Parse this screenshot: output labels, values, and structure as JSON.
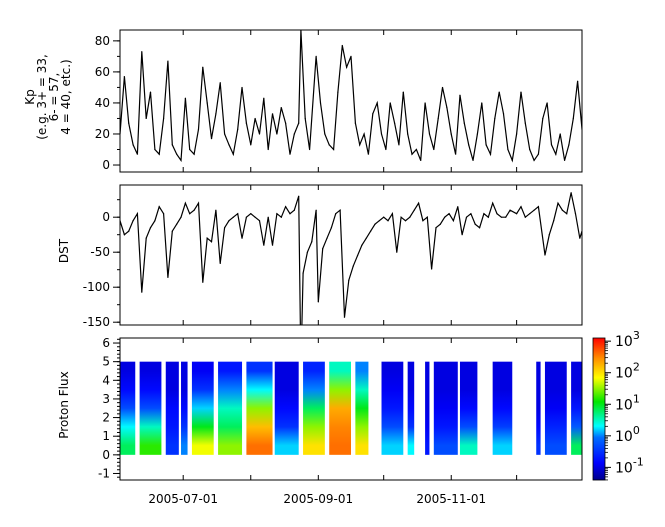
{
  "chart_data": [
    {
      "type": "line",
      "ylabel_lines": [
        "Kp",
        "(e.g. 3+ = 33,",
        "6- = 57,",
        "4 = 40, etc.)"
      ],
      "xlim": [
        "2005-06-02",
        "2005-12-31"
      ],
      "ylim": [
        -4.5,
        87
      ],
      "yticks": [
        0,
        20,
        40,
        60,
        80
      ],
      "color": "#000000",
      "points": [
        [
          "2005-06-02",
          20
        ],
        [
          "2005-06-04",
          57
        ],
        [
          "2005-06-06",
          27
        ],
        [
          "2005-06-08",
          13
        ],
        [
          "2005-06-10",
          7
        ],
        [
          "2005-06-12",
          73
        ],
        [
          "2005-06-14",
          30
        ],
        [
          "2005-06-16",
          47
        ],
        [
          "2005-06-18",
          10
        ],
        [
          "2005-06-20",
          7
        ],
        [
          "2005-06-22",
          30
        ],
        [
          "2005-06-24",
          67
        ],
        [
          "2005-06-26",
          13
        ],
        [
          "2005-06-28",
          7
        ],
        [
          "2005-06-30",
          3
        ],
        [
          "2005-07-02",
          43
        ],
        [
          "2005-07-04",
          10
        ],
        [
          "2005-07-06",
          7
        ],
        [
          "2005-07-08",
          23
        ],
        [
          "2005-07-10",
          63
        ],
        [
          "2005-07-12",
          40
        ],
        [
          "2005-07-14",
          17
        ],
        [
          "2005-07-16",
          33
        ],
        [
          "2005-07-18",
          53
        ],
        [
          "2005-07-20",
          20
        ],
        [
          "2005-07-22",
          13
        ],
        [
          "2005-07-24",
          7
        ],
        [
          "2005-07-26",
          23
        ],
        [
          "2005-07-28",
          50
        ],
        [
          "2005-07-30",
          27
        ],
        [
          "2005-08-01",
          13
        ],
        [
          "2005-08-03",
          30
        ],
        [
          "2005-08-05",
          20
        ],
        [
          "2005-08-07",
          43
        ],
        [
          "2005-08-09",
          10
        ],
        [
          "2005-08-11",
          33
        ],
        [
          "2005-08-13",
          20
        ],
        [
          "2005-08-15",
          37
        ],
        [
          "2005-08-17",
          27
        ],
        [
          "2005-08-19",
          7
        ],
        [
          "2005-08-21",
          20
        ],
        [
          "2005-08-23",
          27
        ],
        [
          "2005-08-24",
          87
        ],
        [
          "2005-08-26",
          30
        ],
        [
          "2005-08-28",
          10
        ],
        [
          "2005-08-31",
          70
        ],
        [
          "2005-09-02",
          40
        ],
        [
          "2005-09-04",
          20
        ],
        [
          "2005-09-06",
          13
        ],
        [
          "2005-09-08",
          10
        ],
        [
          "2005-09-10",
          47
        ],
        [
          "2005-09-12",
          77
        ],
        [
          "2005-09-14",
          63
        ],
        [
          "2005-09-16",
          70
        ],
        [
          "2005-09-18",
          27
        ],
        [
          "2005-09-20",
          13
        ],
        [
          "2005-09-22",
          20
        ],
        [
          "2005-09-24",
          7
        ],
        [
          "2005-09-26",
          33
        ],
        [
          "2005-09-28",
          40
        ],
        [
          "2005-09-30",
          20
        ],
        [
          "2005-10-02",
          10
        ],
        [
          "2005-10-04",
          40
        ],
        [
          "2005-10-06",
          27
        ],
        [
          "2005-10-08",
          13
        ],
        [
          "2005-10-10",
          47
        ],
        [
          "2005-10-12",
          20
        ],
        [
          "2005-10-14",
          7
        ],
        [
          "2005-10-16",
          10
        ],
        [
          "2005-10-18",
          3
        ],
        [
          "2005-10-20",
          40
        ],
        [
          "2005-10-22",
          20
        ],
        [
          "2005-10-24",
          10
        ],
        [
          "2005-10-26",
          30
        ],
        [
          "2005-10-28",
          50
        ],
        [
          "2005-10-30",
          37
        ],
        [
          "2005-11-01",
          20
        ],
        [
          "2005-11-03",
          7
        ],
        [
          "2005-11-05",
          45
        ],
        [
          "2005-11-07",
          27
        ],
        [
          "2005-11-09",
          13
        ],
        [
          "2005-11-11",
          3
        ],
        [
          "2005-11-13",
          20
        ],
        [
          "2005-11-15",
          40
        ],
        [
          "2005-11-17",
          13
        ],
        [
          "2005-11-19",
          7
        ],
        [
          "2005-11-21",
          30
        ],
        [
          "2005-11-23",
          47
        ],
        [
          "2005-11-25",
          33
        ],
        [
          "2005-11-27",
          10
        ],
        [
          "2005-11-29",
          3
        ],
        [
          "2005-12-01",
          20
        ],
        [
          "2005-12-03",
          47
        ],
        [
          "2005-12-05",
          27
        ],
        [
          "2005-12-07",
          10
        ],
        [
          "2005-12-09",
          3
        ],
        [
          "2005-12-11",
          7
        ],
        [
          "2005-12-13",
          30
        ],
        [
          "2005-12-15",
          40
        ],
        [
          "2005-12-17",
          13
        ],
        [
          "2005-12-19",
          7
        ],
        [
          "2005-12-21",
          20
        ],
        [
          "2005-12-23",
          3
        ],
        [
          "2005-12-25",
          13
        ],
        [
          "2005-12-27",
          30
        ],
        [
          "2005-12-29",
          54
        ],
        [
          "2005-12-31",
          23
        ]
      ]
    },
    {
      "type": "line",
      "ylabel": "DST",
      "xlim": [
        "2005-06-02",
        "2005-12-31"
      ],
      "ylim": [
        -154,
        46
      ],
      "yticks": [
        0,
        -50,
        -100,
        -150
      ],
      "color": "#000000",
      "points": [
        [
          "2005-06-02",
          -5
        ],
        [
          "2005-06-04",
          -25
        ],
        [
          "2005-06-06",
          -20
        ],
        [
          "2005-06-08",
          -5
        ],
        [
          "2005-06-10",
          5
        ],
        [
          "2005-06-12",
          -107
        ],
        [
          "2005-06-14",
          -30
        ],
        [
          "2005-06-16",
          -15
        ],
        [
          "2005-06-18",
          -5
        ],
        [
          "2005-06-20",
          15
        ],
        [
          "2005-06-22",
          5
        ],
        [
          "2005-06-24",
          -86
        ],
        [
          "2005-06-26",
          -20
        ],
        [
          "2005-06-28",
          -10
        ],
        [
          "2005-06-30",
          0
        ],
        [
          "2005-07-02",
          20
        ],
        [
          "2005-07-04",
          5
        ],
        [
          "2005-07-06",
          10
        ],
        [
          "2005-07-08",
          20
        ],
        [
          "2005-07-10",
          -93
        ],
        [
          "2005-07-12",
          -30
        ],
        [
          "2005-07-14",
          -35
        ],
        [
          "2005-07-16",
          10
        ],
        [
          "2005-07-18",
          -66
        ],
        [
          "2005-07-20",
          -15
        ],
        [
          "2005-07-22",
          -5
        ],
        [
          "2005-07-24",
          0
        ],
        [
          "2005-07-26",
          5
        ],
        [
          "2005-07-28",
          -30
        ],
        [
          "2005-07-30",
          0
        ],
        [
          "2005-08-01",
          5
        ],
        [
          "2005-08-03",
          0
        ],
        [
          "2005-08-05",
          -5
        ],
        [
          "2005-08-07",
          -40
        ],
        [
          "2005-08-09",
          0
        ],
        [
          "2005-08-11",
          -40
        ],
        [
          "2005-08-13",
          5
        ],
        [
          "2005-08-15",
          0
        ],
        [
          "2005-08-17",
          15
        ],
        [
          "2005-08-19",
          5
        ],
        [
          "2005-08-21",
          10
        ],
        [
          "2005-08-23",
          30
        ],
        [
          "2005-08-24",
          -216
        ],
        [
          "2005-08-25",
          -80
        ],
        [
          "2005-08-27",
          -50
        ],
        [
          "2005-08-29",
          -35
        ],
        [
          "2005-08-31",
          10
        ],
        [
          "2005-09-01",
          -121
        ],
        [
          "2005-09-03",
          -45
        ],
        [
          "2005-09-05",
          -30
        ],
        [
          "2005-09-07",
          -15
        ],
        [
          "2005-09-09",
          5
        ],
        [
          "2005-09-11",
          10
        ],
        [
          "2005-09-13",
          -143
        ],
        [
          "2005-09-15",
          -90
        ],
        [
          "2005-09-17",
          -70
        ],
        [
          "2005-09-19",
          -55
        ],
        [
          "2005-09-21",
          -40
        ],
        [
          "2005-09-23",
          -30
        ],
        [
          "2005-09-25",
          -20
        ],
        [
          "2005-09-27",
          -10
        ],
        [
          "2005-09-29",
          -5
        ],
        [
          "2005-10-01",
          0
        ],
        [
          "2005-10-03",
          -5
        ],
        [
          "2005-10-05",
          5
        ],
        [
          "2005-10-07",
          -50
        ],
        [
          "2005-10-09",
          0
        ],
        [
          "2005-10-11",
          -5
        ],
        [
          "2005-10-13",
          0
        ],
        [
          "2005-10-15",
          10
        ],
        [
          "2005-10-17",
          20
        ],
        [
          "2005-10-19",
          -5
        ],
        [
          "2005-10-21",
          0
        ],
        [
          "2005-10-23",
          -74
        ],
        [
          "2005-10-25",
          -15
        ],
        [
          "2005-10-27",
          -10
        ],
        [
          "2005-10-29",
          0
        ],
        [
          "2005-10-31",
          5
        ],
        [
          "2005-11-02",
          -5
        ],
        [
          "2005-11-04",
          15
        ],
        [
          "2005-11-06",
          -25
        ],
        [
          "2005-11-08",
          0
        ],
        [
          "2005-11-10",
          5
        ],
        [
          "2005-11-12",
          -10
        ],
        [
          "2005-11-14",
          -15
        ],
        [
          "2005-11-16",
          5
        ],
        [
          "2005-11-18",
          0
        ],
        [
          "2005-11-20",
          20
        ],
        [
          "2005-11-22",
          5
        ],
        [
          "2005-11-24",
          0
        ],
        [
          "2005-11-26",
          0
        ],
        [
          "2005-11-28",
          10
        ],
        [
          "2005-12-01",
          5
        ],
        [
          "2005-12-03",
          15
        ],
        [
          "2005-12-05",
          0
        ],
        [
          "2005-12-07",
          5
        ],
        [
          "2005-12-09",
          10
        ],
        [
          "2005-12-11",
          15
        ],
        [
          "2005-12-14",
          -54
        ],
        [
          "2005-12-16",
          -25
        ],
        [
          "2005-12-18",
          -5
        ],
        [
          "2005-12-20",
          20
        ],
        [
          "2005-12-22",
          10
        ],
        [
          "2005-12-24",
          5
        ],
        [
          "2005-12-26",
          35
        ],
        [
          "2005-12-28",
          5
        ],
        [
          "2005-12-30",
          -30
        ],
        [
          "2005-12-31",
          -20
        ]
      ]
    },
    {
      "type": "heatmap",
      "ylabel": "Proton Flux",
      "xlim": [
        "2005-06-02",
        "2005-12-31"
      ],
      "ylim": [
        -1.35,
        6.27
      ],
      "yticks": [
        -1,
        0,
        1,
        2,
        3,
        4,
        5,
        6
      ],
      "y_bins": [
        0,
        1,
        2,
        3,
        4,
        5
      ],
      "colorscale": "jet",
      "color_scale_log": true,
      "clim_log10": [
        -1.4,
        3.1
      ],
      "colorbar_ticks": [
        {
          "base": "10",
          "exp": "3",
          "value": 3
        },
        {
          "base": "10",
          "exp": "2",
          "value": 2
        },
        {
          "base": "10",
          "exp": "1",
          "value": 1
        },
        {
          "base": "10",
          "exp": "0",
          "value": 0
        },
        {
          "base": "10",
          "exp": "-1",
          "value": -1
        }
      ],
      "segments_log10_flux_by_bin": [
        {
          "start": "2005-06-02",
          "end": "2005-06-09",
          "values": [
            0.8,
            0.3,
            -0.3,
            -0.8,
            -1
          ]
        },
        {
          "start": "2005-06-11",
          "end": "2005-06-21",
          "values": [
            1.2,
            0.5,
            -0.3,
            -0.8,
            -1
          ]
        },
        {
          "start": "2005-06-23",
          "end": "2005-06-29",
          "values": [
            -0.5,
            -0.7,
            -0.8,
            -1,
            -1
          ]
        },
        {
          "start": "2005-06-30",
          "end": "2005-07-03",
          "values": [
            0,
            -0.5,
            -0.8,
            -1,
            -1
          ]
        },
        {
          "start": "2005-07-05",
          "end": "2005-07-15",
          "values": [
            1.8,
            1,
            0.2,
            -0.5,
            -0.9
          ]
        },
        {
          "start": "2005-07-17",
          "end": "2005-07-28",
          "values": [
            1.5,
            0.8,
            0.5,
            0,
            -0.7
          ]
        },
        {
          "start": "2005-07-30",
          "end": "2005-08-11",
          "values": [
            2.6,
            2.2,
            1.5,
            0.3,
            -0.5
          ]
        },
        {
          "start": "2005-08-12",
          "end": "2005-08-23",
          "values": [
            0.2,
            -0.5,
            -0.8,
            -1,
            -1
          ]
        },
        {
          "start": "2005-08-25",
          "end": "2005-09-04",
          "values": [
            2,
            1.5,
            0.8,
            0,
            -0.6
          ]
        },
        {
          "start": "2005-09-06",
          "end": "2005-09-16",
          "values": [
            2.6,
            2.5,
            2.3,
            1.5,
            0.5
          ]
        },
        {
          "start": "2005-09-18",
          "end": "2005-09-24",
          "values": [
            2,
            1.5,
            1,
            0.5,
            0
          ]
        },
        {
          "start": "2005-09-30",
          "end": "2005-10-10",
          "values": [
            0.2,
            -0.3,
            -0.7,
            -0.9,
            -1
          ]
        },
        {
          "start": "2005-10-12",
          "end": "2005-10-15",
          "values": [
            0.3,
            -0.5,
            -0.8,
            -1,
            -1
          ]
        },
        {
          "start": "2005-10-20",
          "end": "2005-10-22",
          "values": [
            -0.7,
            -0.9,
            -1,
            -1,
            -1
          ]
        },
        {
          "start": "2005-10-24",
          "end": "2005-11-04",
          "values": [
            -0.3,
            -0.7,
            -0.9,
            -1,
            -1
          ]
        },
        {
          "start": "2005-11-05",
          "end": "2005-11-13",
          "values": [
            0.5,
            -0.3,
            -0.8,
            -1,
            -1
          ]
        },
        {
          "start": "2005-11-20",
          "end": "2005-11-29",
          "values": [
            0.2,
            -0.4,
            -0.8,
            -1,
            -1
          ]
        },
        {
          "start": "2005-12-10",
          "end": "2005-12-12",
          "values": [
            -0.5,
            -0.8,
            -1,
            -1,
            -1
          ]
        },
        {
          "start": "2005-12-14",
          "end": "2005-12-24",
          "values": [
            -0.3,
            -0.6,
            -0.9,
            -1,
            -1
          ]
        },
        {
          "start": "2005-12-26",
          "end": "2005-12-31",
          "values": [
            0.8,
            -0.2,
            -0.7,
            -1,
            -1
          ]
        }
      ]
    }
  ],
  "x_axis": {
    "tick_dates": [
      "2005-07-01",
      "2005-08-01",
      "2005-09-01",
      "2005-10-01",
      "2005-11-01",
      "2005-12-01"
    ],
    "labels": [
      {
        "date": "2005-07-01",
        "text": "2005-07-01"
      },
      {
        "date": "2005-09-01",
        "text": "2005-09-01"
      },
      {
        "date": "2005-11-01",
        "text": "2005-11-01"
      }
    ]
  }
}
